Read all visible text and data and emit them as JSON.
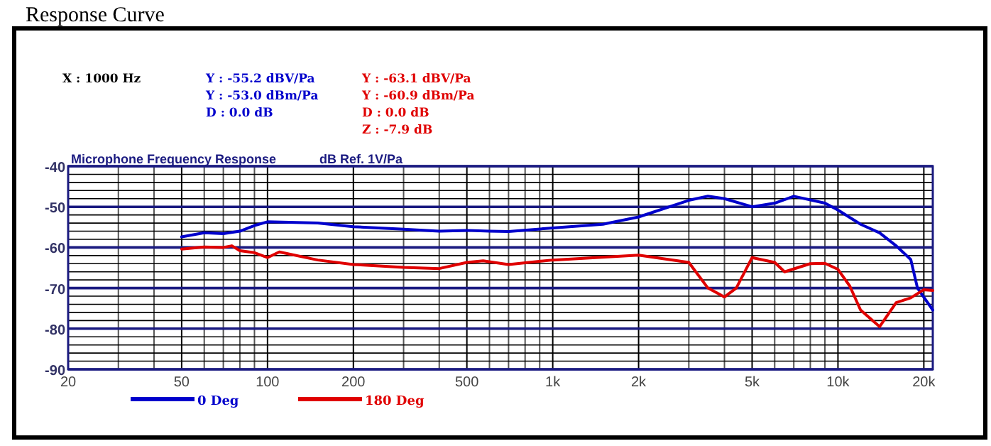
{
  "chart_data": {
    "type": "line",
    "title": "Response Curve",
    "subtitle": "Microphone Frequency Response",
    "ylabel": "dB Ref. 1V/Pa",
    "annotations": [
      "X : 1000 Hz",
      "Y : -55.2 dBV/Pa",
      "Y : -53.0 dBm/Pa",
      "D : 0.0 dB",
      "Y : -63.1 dBV/Pa",
      "Y : -60.9 dBm/Pa",
      "D : 0.0 dB",
      "Z : -7.9 dB"
    ],
    "log": "x",
    "grid": true,
    "legend": "bottom left",
    "line_style": "solid",
    "marker": "none",
    "xlim": [
      20,
      21500
    ],
    "ylim": [
      -90,
      -40
    ],
    "xticks": [
      20,
      {
        "value": 30,
        "label": null
      },
      {
        "value": 40,
        "label": null
      },
      50,
      {
        "value": 60,
        "label": null
      },
      {
        "value": 70,
        "label": null
      },
      {
        "value": 80,
        "label": null
      },
      {
        "value": 90,
        "label": null
      },
      100,
      200,
      {
        "value": 300,
        "label": null
      },
      {
        "value": 400,
        "label": null
      },
      500,
      {
        "value": 600,
        "label": null
      },
      {
        "value": 700,
        "label": null
      },
      {
        "value": 800,
        "label": null
      },
      {
        "value": 900,
        "label": null
      },
      {
        "value": 1000,
        "label": "1k"
      },
      {
        "value": 2000,
        "label": "2k"
      },
      {
        "value": 3000,
        "label": null
      },
      {
        "value": 4000,
        "label": null
      },
      {
        "value": 5000,
        "label": "5k"
      },
      {
        "value": 6000,
        "label": null
      },
      {
        "value": 7000,
        "label": null
      },
      {
        "value": 8000,
        "label": null
      },
      {
        "value": 9000,
        "label": null
      },
      {
        "value": 10000,
        "label": "10k"
      },
      {
        "value": 20000,
        "label": "20k"
      }
    ],
    "yticks": [
      -90,
      {
        "value": -88,
        "label": null
      },
      {
        "value": -86,
        "label": null
      },
      {
        "value": -84,
        "label": null
      },
      {
        "value": -82,
        "label": null
      },
      -80,
      {
        "value": -78,
        "label": null
      },
      {
        "value": -76,
        "label": null
      },
      {
        "value": -74,
        "label": null
      },
      {
        "value": -72,
        "label": null
      },
      -70,
      {
        "value": -68,
        "label": null
      },
      {
        "value": -66,
        "label": null
      },
      {
        "value": -64,
        "label": null
      },
      {
        "value": -62,
        "label": null
      },
      -60,
      {
        "value": -58,
        "label": null
      },
      {
        "value": -56,
        "label": null
      },
      {
        "value": -54,
        "label": null
      },
      {
        "value": -52,
        "label": null
      },
      -50,
      {
        "value": -48,
        "label": null
      },
      {
        "value": -46,
        "label": null
      },
      {
        "value": -44,
        "label": null
      },
      {
        "value": -42,
        "label": null
      },
      -40
    ],
    "series": [
      {
        "name": "0 Deg",
        "color": "#0000cc",
        "x": [
          50,
          60,
          70,
          80,
          90,
          100,
          150,
          200,
          300,
          400,
          500,
          600,
          700,
          1000,
          1500,
          2000,
          3000,
          3500,
          4000,
          5000,
          6000,
          7000,
          9000,
          10000,
          12000,
          14000,
          16000,
          18000,
          19000,
          21500
        ],
        "values": [
          -57.4,
          -56.4,
          -56.6,
          -56,
          -54.6,
          -53.7,
          -54,
          -54.9,
          -55.5,
          -56,
          -55.8,
          -56,
          -56.1,
          -55.2,
          -54.3,
          -52.5,
          -48.4,
          -47.4,
          -48,
          -50,
          -49.1,
          -47.4,
          -49.1,
          -50.8,
          -54.3,
          -56.4,
          -59.6,
          -63,
          -70,
          -75.4
        ]
      },
      {
        "name": "180 Deg",
        "color": "#e00000",
        "x": [
          50,
          60,
          70,
          75,
          80,
          90,
          100,
          110,
          150,
          200,
          300,
          400,
          500,
          570,
          700,
          1000,
          2000,
          3000,
          3500,
          4000,
          4400,
          5000,
          6000,
          6500,
          8000,
          9000,
          10000,
          11000,
          12000,
          14000,
          16000,
          18000,
          20000,
          21500
        ],
        "values": [
          -60.4,
          -59.9,
          -60,
          -59.6,
          -60.8,
          -61.3,
          -62.5,
          -61.1,
          -63.1,
          -64.2,
          -64.9,
          -65.2,
          -63.7,
          -63.3,
          -64.2,
          -63.1,
          -61.9,
          -63.7,
          -70,
          -72.2,
          -70,
          -62.5,
          -63.7,
          -66,
          -64,
          -63.9,
          -65.4,
          -69.5,
          -75.4,
          -79.5,
          -73.6,
          -72.4,
          -70.4,
          -70.6
        ]
      }
    ]
  }
}
